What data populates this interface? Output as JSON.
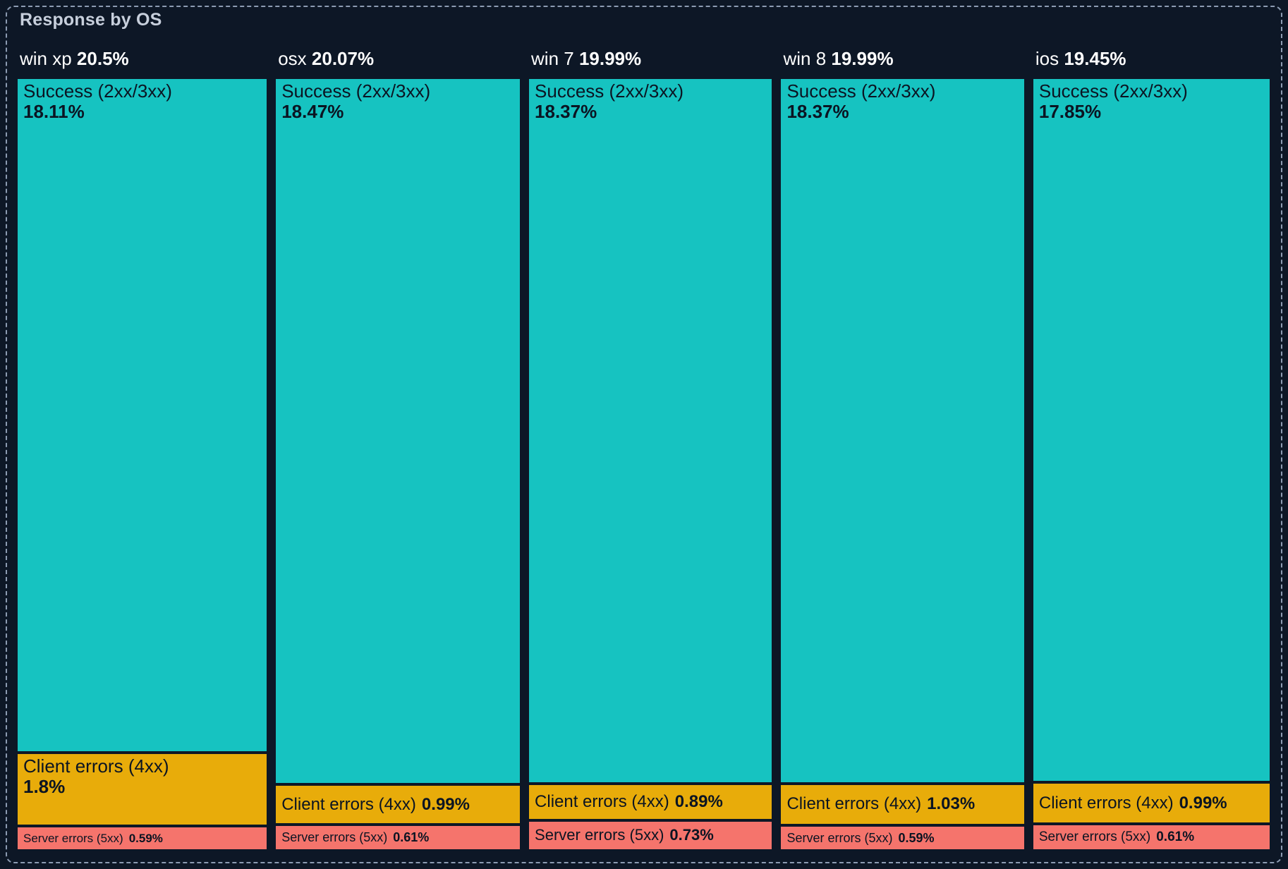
{
  "title": "Response by OS",
  "colors": {
    "background": "#0d1726",
    "panel_border": "#8c9bb2",
    "title_text": "#c7cfdc",
    "header_text": "#ffffff",
    "segment_text": "#0b1422",
    "success": "#16c3c1",
    "client_errors": "#e8ac0a",
    "server_errors": "#f5746c"
  },
  "chart_data": {
    "type": "treemap",
    "title": "Response by OS",
    "legend_position": "none",
    "value_suffix": "%",
    "categories": [
      "win xp",
      "osx",
      "win 7",
      "win 8",
      "ios"
    ],
    "totals": [
      20.5,
      20.07,
      19.99,
      19.99,
      19.45
    ],
    "series": [
      {
        "key": "success",
        "name": "Success (2xx/3xx)",
        "color": "#16c3c1",
        "values": [
          18.11,
          18.47,
          18.37,
          18.37,
          17.85
        ]
      },
      {
        "key": "client-errors",
        "name": "Client errors (4xx)",
        "color": "#e8ac0a",
        "values": [
          1.8,
          0.99,
          0.89,
          1.03,
          0.99
        ]
      },
      {
        "key": "server-errors",
        "name": "Server errors (5xx)",
        "color": "#f5746c",
        "values": [
          0.59,
          0.61,
          0.73,
          0.59,
          0.61
        ]
      }
    ]
  }
}
